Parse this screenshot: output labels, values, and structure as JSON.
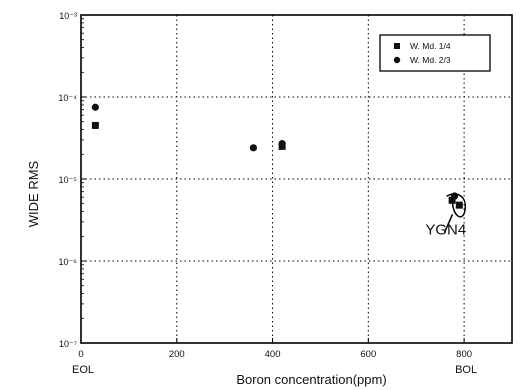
{
  "chart_data": {
    "type": "scatter",
    "xlabel": "Boron concentration(ppm)",
    "ylabel": "WIDE RMS",
    "xlim": [
      0,
      900
    ],
    "ylim": [
      1e-07,
      0.001
    ],
    "yscale": "log",
    "grid": true,
    "legend_position": "top-right",
    "x_ticks": [
      "0",
      "200",
      "400",
      "600",
      "800"
    ],
    "y_ticks": [
      "10⁻³",
      "10⁻⁴",
      "10⁻⁵",
      "10⁻⁶",
      "10⁻⁷"
    ],
    "bottom_labels": [
      {
        "text": "EOL",
        "x": 0
      },
      {
        "text": "BOL",
        "x": 800
      }
    ],
    "annotation": {
      "text": "YGN4",
      "x": 740,
      "y": 2.5e-06
    },
    "series": [
      {
        "name": "W. Md. 1/4",
        "marker": "square",
        "points": [
          {
            "x": 30,
            "y": 4.5e-05
          },
          {
            "x": 420,
            "y": 2.5e-05
          },
          {
            "x": 775,
            "y": 5.5e-06
          },
          {
            "x": 790,
            "y": 4.8e-06
          }
        ]
      },
      {
        "name": "W. Md. 2/3",
        "marker": "circle",
        "points": [
          {
            "x": 30,
            "y": 7.5e-05
          },
          {
            "x": 360,
            "y": 2.4e-05
          },
          {
            "x": 420,
            "y": 2.7e-05
          },
          {
            "x": 780,
            "y": 6.2e-06
          }
        ]
      }
    ]
  }
}
